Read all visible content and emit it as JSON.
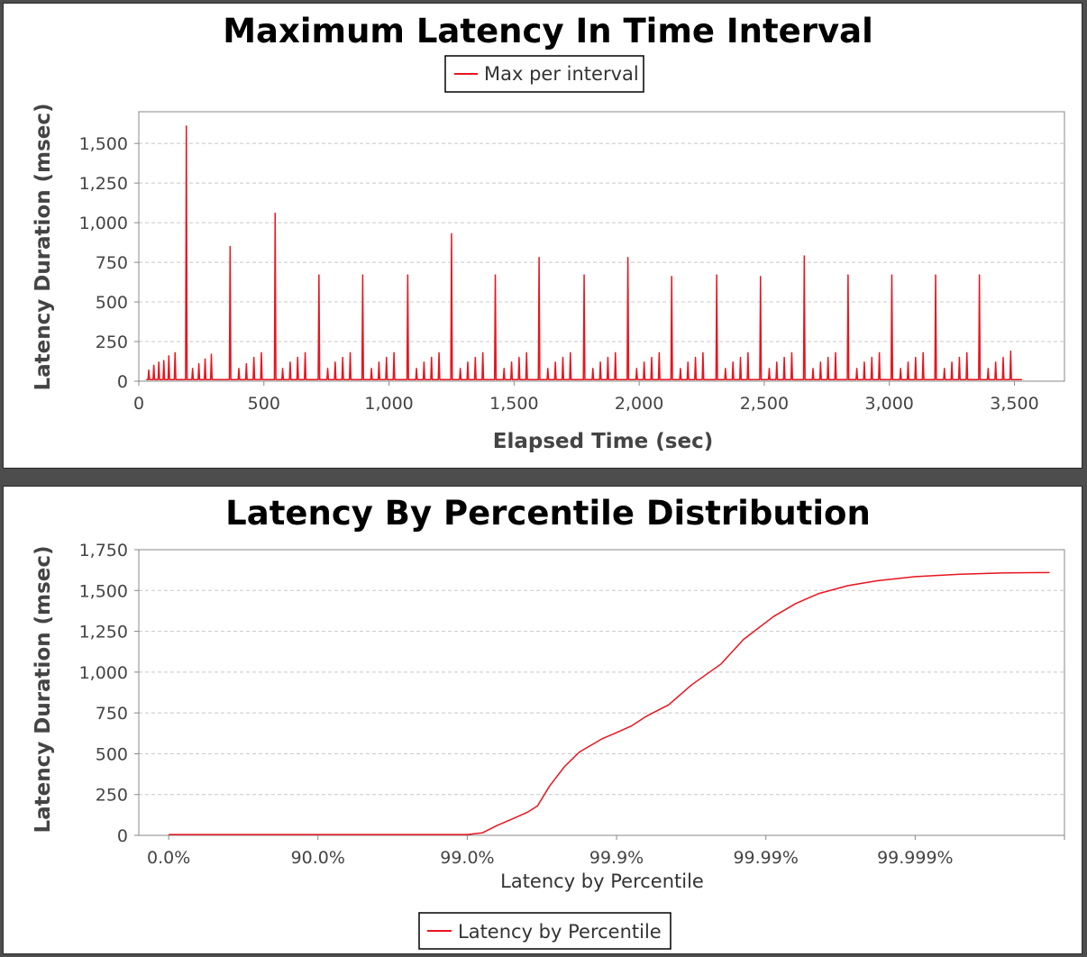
{
  "colors": {
    "series": "#e8141e",
    "background": "#4d4d4d",
    "panel": "#ffffff"
  },
  "chart_data": [
    {
      "type": "line",
      "title": "Maximum Latency In Time Interval",
      "xlabel": "Elapsed Time (sec)",
      "ylabel": "Latency Duration (msec)",
      "xlim": [
        0,
        3700
      ],
      "ylim": [
        0,
        1700
      ],
      "x_ticks": [
        0,
        500,
        1000,
        1500,
        2000,
        2500,
        3000,
        3500
      ],
      "x_tick_labels": [
        "0",
        "500",
        "1,000",
        "1,500",
        "2,000",
        "2,500",
        "3,000",
        "3,500"
      ],
      "y_ticks": [
        0,
        250,
        500,
        750,
        1000,
        1250,
        1500
      ],
      "y_tick_labels": [
        "0",
        "250",
        "500",
        "750",
        "1,000",
        "1,250",
        "1,500"
      ],
      "grid": true,
      "legend": "top",
      "series": [
        {
          "name": "Max per interval",
          "x_start": 30,
          "x_end": 3530,
          "baseline": 10,
          "spikes": [
            [
              40,
              70
            ],
            [
              60,
              100
            ],
            [
              80,
              120
            ],
            [
              100,
              130
            ],
            [
              120,
              160
            ],
            [
              145,
              180
            ],
            [
              190,
              1610
            ],
            [
              215,
              80
            ],
            [
              240,
              110
            ],
            [
              265,
              140
            ],
            [
              290,
              170
            ],
            [
              365,
              850
            ],
            [
              400,
              80
            ],
            [
              430,
              110
            ],
            [
              460,
              150
            ],
            [
              490,
              180
            ],
            [
              545,
              1060
            ],
            [
              575,
              80
            ],
            [
              605,
              120
            ],
            [
              635,
              150
            ],
            [
              665,
              180
            ],
            [
              720,
              670
            ],
            [
              755,
              80
            ],
            [
              785,
              120
            ],
            [
              815,
              150
            ],
            [
              845,
              180
            ],
            [
              895,
              670
            ],
            [
              930,
              80
            ],
            [
              960,
              120
            ],
            [
              990,
              150
            ],
            [
              1020,
              180
            ],
            [
              1075,
              670
            ],
            [
              1110,
              80
            ],
            [
              1140,
              120
            ],
            [
              1170,
              150
            ],
            [
              1200,
              180
            ],
            [
              1250,
              930
            ],
            [
              1285,
              80
            ],
            [
              1315,
              120
            ],
            [
              1345,
              150
            ],
            [
              1375,
              180
            ],
            [
              1425,
              670
            ],
            [
              1460,
              80
            ],
            [
              1490,
              120
            ],
            [
              1520,
              150
            ],
            [
              1550,
              180
            ],
            [
              1600,
              780
            ],
            [
              1635,
              80
            ],
            [
              1665,
              120
            ],
            [
              1695,
              150
            ],
            [
              1725,
              180
            ],
            [
              1780,
              670
            ],
            [
              1815,
              80
            ],
            [
              1845,
              120
            ],
            [
              1875,
              150
            ],
            [
              1905,
              180
            ],
            [
              1955,
              780
            ],
            [
              1990,
              80
            ],
            [
              2020,
              120
            ],
            [
              2050,
              150
            ],
            [
              2080,
              180
            ],
            [
              2130,
              660
            ],
            [
              2165,
              80
            ],
            [
              2195,
              120
            ],
            [
              2225,
              150
            ],
            [
              2255,
              180
            ],
            [
              2310,
              670
            ],
            [
              2345,
              80
            ],
            [
              2375,
              120
            ],
            [
              2405,
              150
            ],
            [
              2435,
              180
            ],
            [
              2485,
              660
            ],
            [
              2520,
              80
            ],
            [
              2550,
              120
            ],
            [
              2580,
              150
            ],
            [
              2610,
              180
            ],
            [
              2660,
              790
            ],
            [
              2695,
              80
            ],
            [
              2725,
              120
            ],
            [
              2755,
              150
            ],
            [
              2785,
              180
            ],
            [
              2835,
              670
            ],
            [
              2870,
              80
            ],
            [
              2900,
              120
            ],
            [
              2930,
              150
            ],
            [
              2960,
              180
            ],
            [
              3010,
              670
            ],
            [
              3045,
              80
            ],
            [
              3075,
              120
            ],
            [
              3105,
              150
            ],
            [
              3135,
              180
            ],
            [
              3185,
              670
            ],
            [
              3220,
              80
            ],
            [
              3250,
              120
            ],
            [
              3280,
              150
            ],
            [
              3310,
              180
            ],
            [
              3360,
              670
            ],
            [
              3395,
              80
            ],
            [
              3425,
              120
            ],
            [
              3455,
              150
            ],
            [
              3485,
              190
            ]
          ]
        }
      ]
    },
    {
      "type": "line",
      "title": "Latency By Percentile Distribution",
      "xlabel": "Latency by Percentile",
      "ylabel": "Latency Duration (msec)",
      "x_scale": "log-nines (tick index = number of nines)",
      "xlim": [
        -0.2,
        6.0
      ],
      "ylim": [
        0,
        1750
      ],
      "x_ticks": [
        0,
        1,
        2,
        3,
        4,
        5,
        6
      ],
      "x_tick_labels": [
        "0.0%",
        "90.0%",
        "99.0%",
        "99.9%",
        "99.99%",
        "99.999%",
        ""
      ],
      "y_ticks": [
        0,
        250,
        500,
        750,
        1000,
        1250,
        1500,
        1750
      ],
      "y_tick_labels": [
        "0",
        "250",
        "500",
        "750",
        "1,000",
        "1,250",
        "1,500",
        "1,750"
      ],
      "grid": true,
      "legend": "bottom",
      "series": [
        {
          "name": "Latency by Percentile",
          "points": [
            [
              0.0,
              5
            ],
            [
              1.0,
              5
            ],
            [
              2.0,
              5
            ],
            [
              2.1,
              15
            ],
            [
              2.2,
              60
            ],
            [
              2.3,
              100
            ],
            [
              2.4,
              140
            ],
            [
              2.47,
              180
            ],
            [
              2.55,
              300
            ],
            [
              2.65,
              420
            ],
            [
              2.75,
              510
            ],
            [
              2.9,
              590
            ],
            [
              3.0,
              630
            ],
            [
              3.1,
              670
            ],
            [
              3.2,
              730
            ],
            [
              3.35,
              800
            ],
            [
              3.5,
              920
            ],
            [
              3.7,
              1050
            ],
            [
              3.85,
              1200
            ],
            [
              4.05,
              1340
            ],
            [
              4.2,
              1420
            ],
            [
              4.35,
              1480
            ],
            [
              4.55,
              1530
            ],
            [
              4.75,
              1560
            ],
            [
              5.0,
              1585
            ],
            [
              5.3,
              1600
            ],
            [
              5.6,
              1608
            ],
            [
              5.9,
              1610
            ]
          ]
        }
      ]
    }
  ]
}
